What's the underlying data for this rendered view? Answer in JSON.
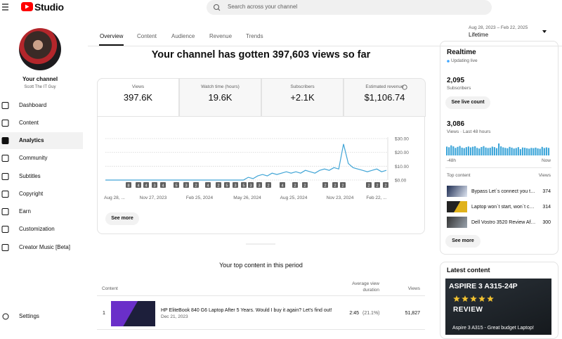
{
  "header": {
    "logo": "Studio",
    "search_placeholder": "Search across your channel"
  },
  "sidebar": {
    "channel_title": "Your channel",
    "channel_name": "Scott The IT Guy",
    "menu": [
      "Dashboard",
      "Content",
      "Analytics",
      "Community",
      "Subtitles",
      "Copyright",
      "Earn",
      "Customization",
      "Creator Music [Beta]"
    ],
    "selected_index": 2,
    "settings": "Settings"
  },
  "tabs": {
    "items": [
      "Overview",
      "Content",
      "Audience",
      "Revenue",
      "Trends"
    ],
    "selected_index": 0
  },
  "date_range": {
    "range": "Aug 28, 2023 – Feb 22, 2025",
    "period": "Lifetime"
  },
  "headline": "Your channel has gotten 397,603 views so far",
  "metrics": [
    {
      "label": "Views",
      "value": "397.6K"
    },
    {
      "label": "Watch time (hours)",
      "value": "19.6K"
    },
    {
      "label": "Subscribers",
      "value": "+2.1K"
    },
    {
      "label": "Estimated revenue",
      "value": "$1,106.74"
    }
  ],
  "chart": {
    "type": "line",
    "color": "#41a5d6",
    "ylim": [
      0,
      31
    ],
    "yticks": [
      {
        "value": 30,
        "label": "$30.00"
      },
      {
        "value": 20,
        "label": "$20.00"
      },
      {
        "value": 10,
        "label": "$10.00"
      },
      {
        "value": 0,
        "label": "$0.00"
      }
    ],
    "values": [
      0,
      0,
      0,
      0,
      0,
      0,
      0,
      0,
      0,
      0,
      0,
      0,
      0,
      0,
      0,
      0,
      0,
      0,
      0,
      0,
      0,
      0,
      0,
      0,
      0,
      0,
      0,
      0,
      0,
      0,
      2,
      1,
      3,
      4,
      3,
      5,
      4,
      5,
      6,
      5,
      6,
      5,
      7,
      6,
      5,
      7,
      8,
      7,
      9,
      8,
      26,
      12,
      9,
      8,
      7,
      6,
      7,
      8,
      6,
      7
    ],
    "x_labels": [
      "Aug 28, ...",
      "Nov 27, 2023",
      "Feb 25, 2024",
      "May 26, 2024",
      "Aug 25, 2024",
      "Nov 23, 2024",
      "Feb 22, ..."
    ],
    "markers": [
      "8",
      "4",
      "4",
      "3",
      "4",
      "5",
      "3",
      "2",
      "4",
      "2",
      "5",
      "3",
      "5",
      "3",
      "3",
      "2",
      "4",
      "2",
      "2",
      "2",
      "2",
      "2",
      "2",
      "2",
      "2"
    ]
  },
  "see_more": "See more",
  "top_content": {
    "title": "Your top content in this period",
    "columns": [
      "Content",
      "Average view duration",
      "Views"
    ],
    "rows": [
      {
        "rank": 1,
        "title": "HP EliteBook 840 G6 Laptop After 5 Years. Would I buy it again? Let's find out!",
        "date": "Dec 21, 2023",
        "duration": "2:45",
        "percent": "(21.1%)",
        "views": "51,827"
      }
    ]
  },
  "realtime": {
    "title": "Realtime",
    "status": "Updating live",
    "subscribers": "2,095",
    "subscribers_label": "Subscribers",
    "live_button": "See live count",
    "views": "3,086",
    "views_label": "Views · Last 48 hours",
    "bar_color": "#3ea6d9",
    "bars": [
      70,
      65,
      80,
      72,
      60,
      68,
      75,
      62,
      58,
      66,
      71,
      64,
      69,
      73,
      60,
      55,
      67,
      74,
      63,
      59,
      61,
      70,
      66,
      58,
      95,
      72,
      64,
      60,
      57,
      68,
      62,
      55,
      59,
      66,
      50,
      63,
      61,
      57,
      54,
      60,
      58,
      62,
      56,
      53,
      68,
      59,
      64,
      60
    ],
    "axis_start": "-48h",
    "axis_end": "Now",
    "top_content_label": "Top content",
    "views_column": "Views",
    "items": [
      {
        "title": "Bypass Let`s connect you t…",
        "views": 374
      },
      {
        "title": "Laptop won`t start, won`t c…",
        "views": 314
      },
      {
        "title": "Dell Vostro 3520 Review Af…",
        "views": 300
      }
    ],
    "see_more": "See more"
  },
  "latest_content": {
    "title": "Latest content",
    "thumb_title": "ASPIRE 3 A315-24P",
    "thumb_badge": "REVIEW",
    "video_title": "Aspire 3 A315 - Great budget Laptop!"
  }
}
